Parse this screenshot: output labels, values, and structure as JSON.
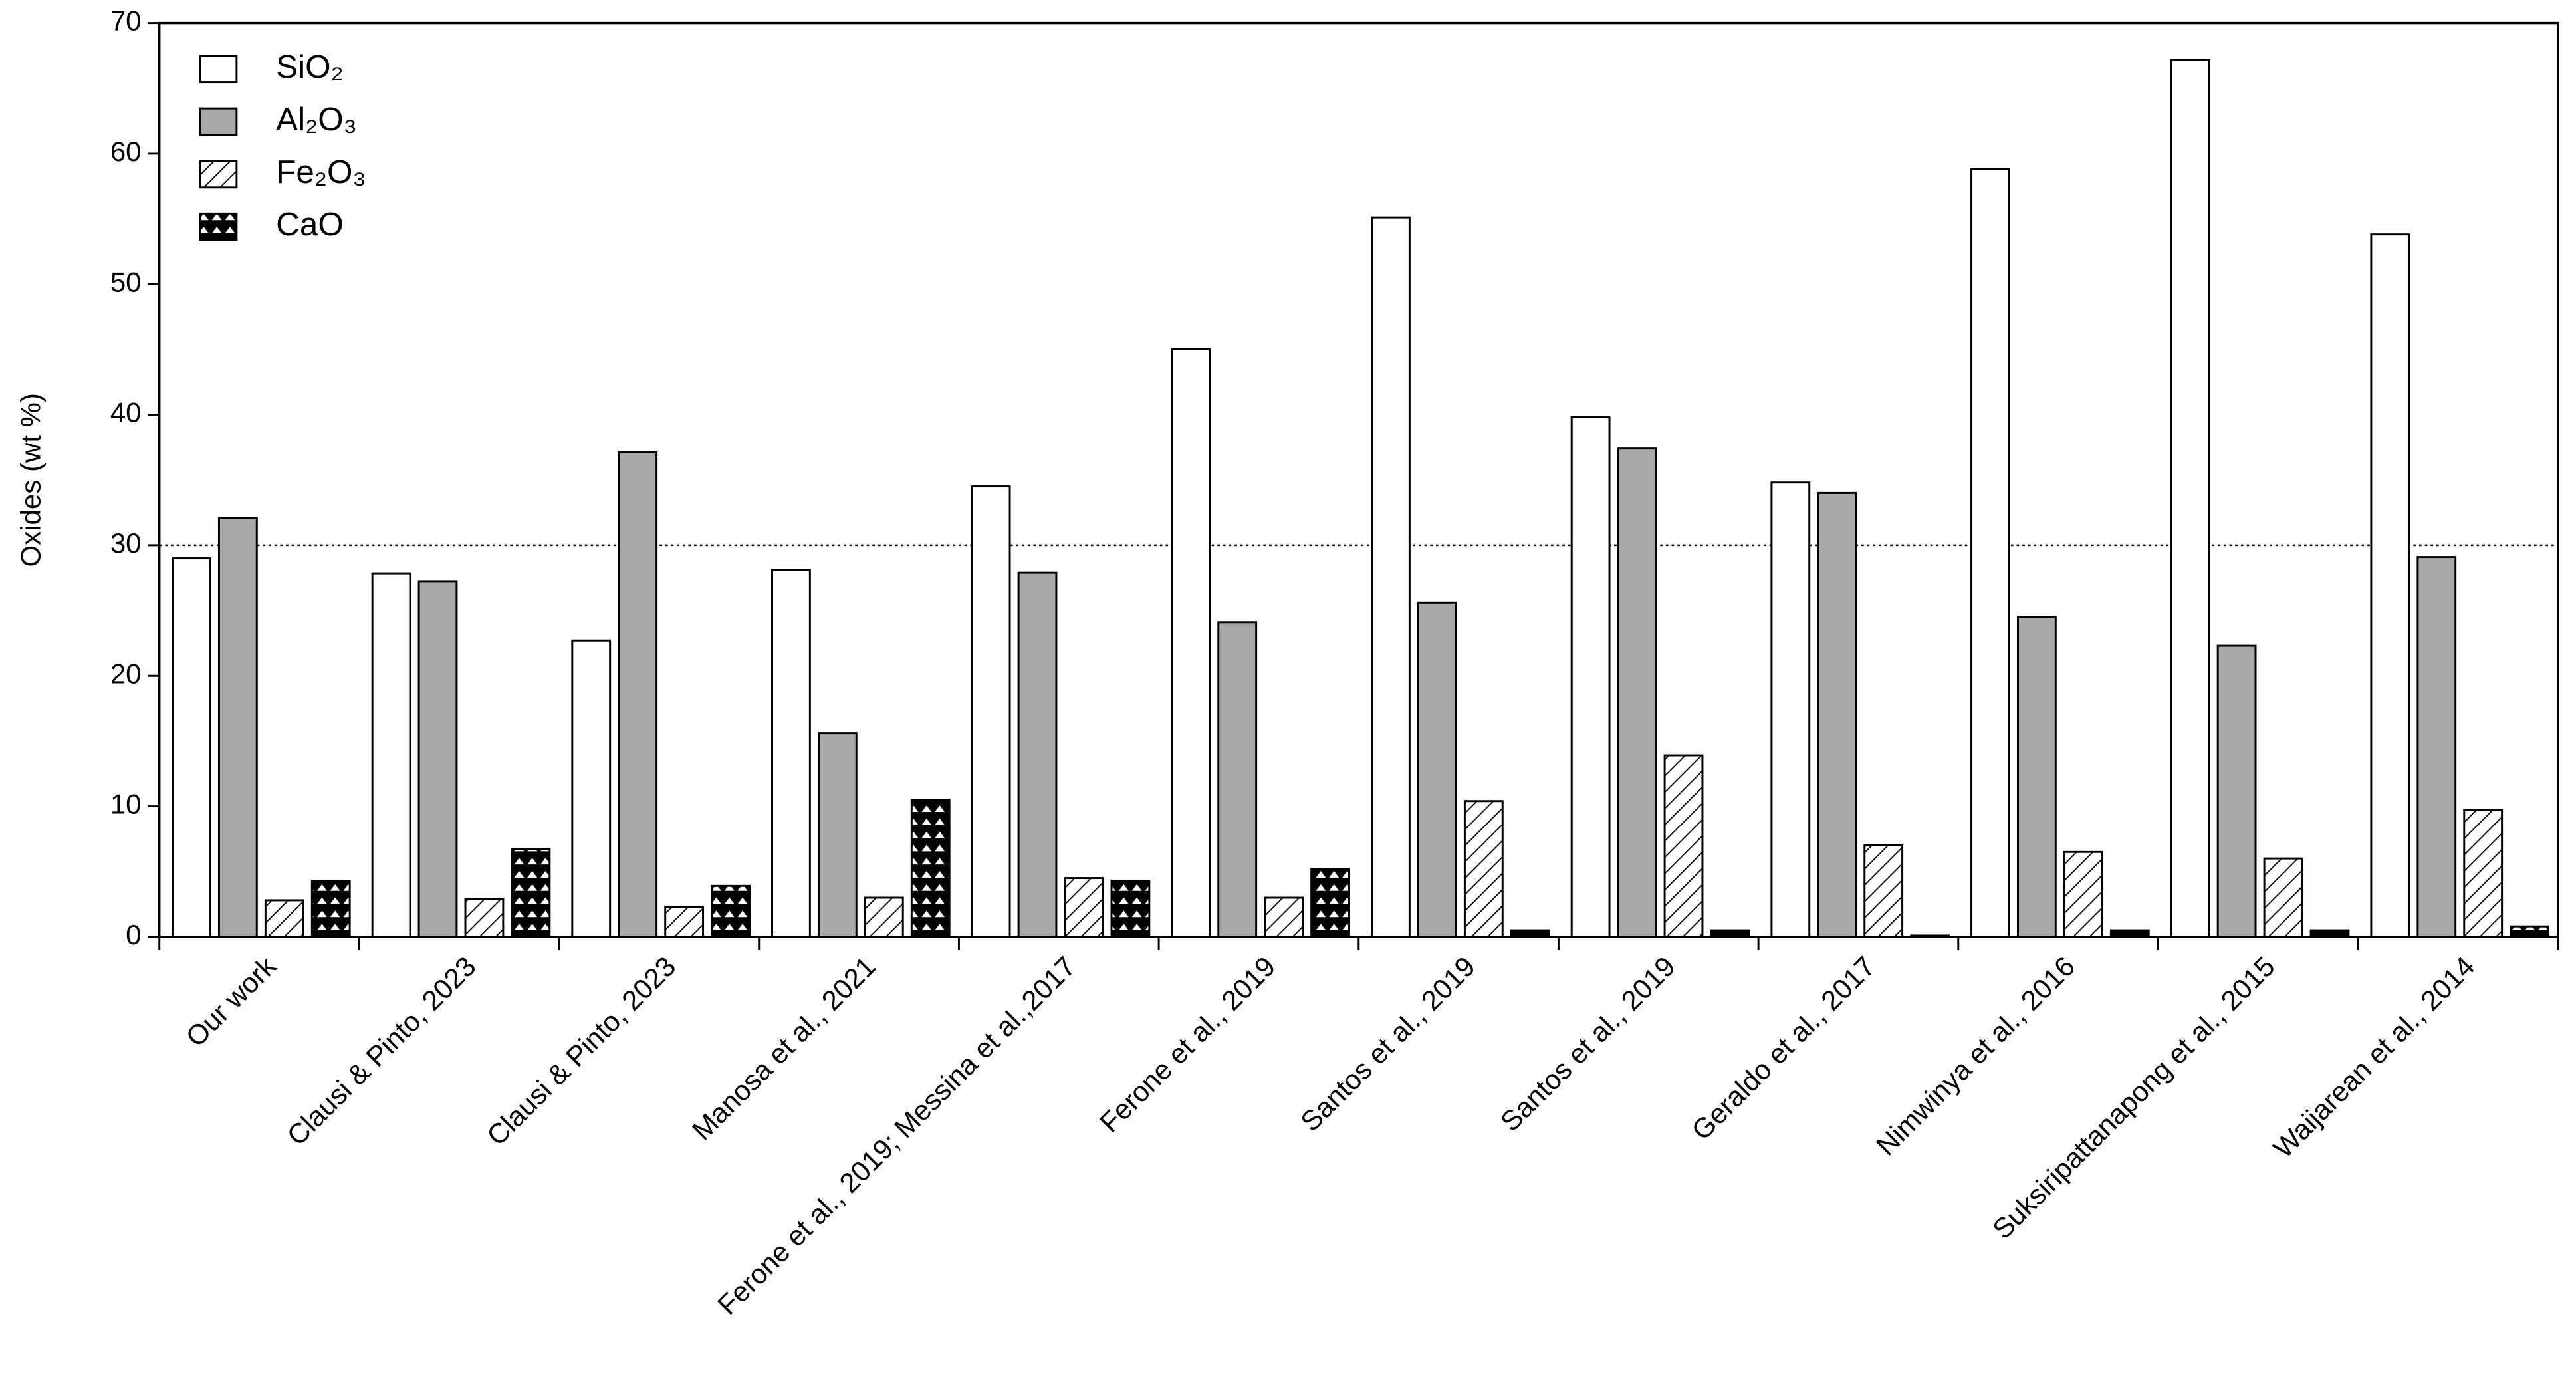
{
  "chart_data": {
    "type": "bar",
    "y_label": "Oxides (wt %)",
    "categories": [
      "Our work",
      "Clausi & Pinto, 2023",
      "Clausi & Pinto, 2023",
      "Manosa et al., 2021",
      "Ferone et al., 2019; Messina et al.,2017",
      "Ferone et al., 2019",
      "Santos et al., 2019",
      "Santos et al., 2019",
      "Geraldo et al., 2017",
      "Nimwinya et al., 2016",
      "Suksiripattanapong et al., 2015",
      "Waijarean et al., 2014"
    ],
    "series": [
      {
        "name": "SiO₂",
        "color": "#ffffff",
        "pattern": "none",
        "values": [
          29,
          27.8,
          22.7,
          28.1,
          34.5,
          45,
          55.1,
          39.8,
          34.8,
          58.8,
          67.2,
          53.8
        ]
      },
      {
        "name": "Al₂O₃",
        "color": "#a9a9a9",
        "pattern": "none",
        "values": [
          32.1,
          27.2,
          37.1,
          15.6,
          27.9,
          24.1,
          25.6,
          37.4,
          34,
          24.5,
          22.3,
          29.1
        ]
      },
      {
        "name": "Fe₂O₃",
        "color": "#ffffff",
        "pattern": "hatch",
        "values": [
          2.8,
          2.9,
          2.3,
          3,
          4.5,
          3,
          10.4,
          13.9,
          7,
          6.5,
          6,
          9.7
        ]
      },
      {
        "name": "CaO",
        "color": "#000000",
        "pattern": "dots",
        "values": [
          4.3,
          6.7,
          3.9,
          10.5,
          4.3,
          5.2,
          0.5,
          0.5,
          0.1,
          0.5,
          0.5,
          0.8
        ]
      }
    ],
    "ylim": [
      0,
      70
    ],
    "yticks": [
      0,
      10,
      20,
      30,
      40,
      50,
      60,
      70
    ],
    "reference_line": 30,
    "legend": "upper-left"
  }
}
